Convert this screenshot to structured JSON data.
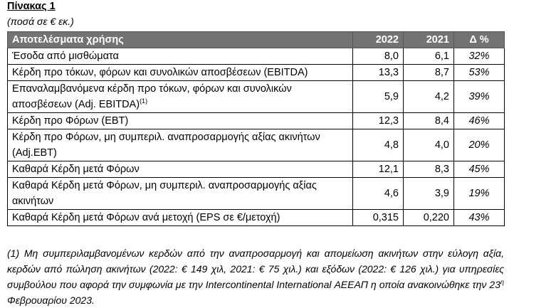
{
  "title": "Πίνακας 1",
  "unit_note": "(ποσά σε € εκ.)",
  "table": {
    "headers": [
      "Αποτελέσματα  χρήσης",
      "2022",
      "2021",
      "Δ %"
    ],
    "rows": [
      {
        "label": "Έσοδα από μισθώματα",
        "sup": "",
        "y2022": "8,0",
        "y2021": "6,1",
        "delta": "32%"
      },
      {
        "label": "Κέρδη προ τόκων, φόρων και συνολικών αποσβέσεων (EBITDA)",
        "sup": "",
        "y2022": "13,3",
        "y2021": "8,7",
        "delta": "53%"
      },
      {
        "label": "Επαναλαμβανόμενα κέρδη προ τόκων, φόρων και συνολικών αποσβέσεων (Adj. EBITDA)",
        "sup": "(1)",
        "y2022": "5,9",
        "y2021": "4,2",
        "delta": "39%"
      },
      {
        "label": "Κέρδη προ Φόρων (EBT)",
        "sup": "",
        "y2022": "12,3",
        "y2021": "8,4",
        "delta": "46%"
      },
      {
        "label": "Κέρδη προ Φόρων, μη συμπεριλ. αναπροσαρμογής αξίας ακινήτων (Adj.EBT)",
        "sup": "",
        "y2022": "4,8",
        "y2021": "4,0",
        "delta": "20%"
      },
      {
        "label": "Καθαρά Κέρδη μετά Φόρων",
        "sup": "",
        "y2022": "12,1",
        "y2021": "8,3",
        "delta": "45%"
      },
      {
        "label": "Καθαρά Κέρδη μετά Φόρων, μη συμπεριλ. αναπροσαρμογής αξίας ακινήτων",
        "sup": "",
        "y2022": "4,6",
        "y2021": "3,9",
        "delta": "19%"
      },
      {
        "label": "Καθαρά Κέρδη μετά Φόρων ανά μετοχή (EPS σε €/μετοχή)",
        "sup": "",
        "y2022": "0,315",
        "y2021": "0,220",
        "delta": "43%"
      }
    ]
  },
  "footnote": {
    "text": "(1) Μη συμπεριλαμβανομένων κερδών από την αναπροσαρμογή  και απομείωση ακινήτων στην εύλογη αξία, κερδών από πώληση ακινήτων (2022: € 149 χιλ, 2021: € 75 χιλ.) και εξόδων (2022: € 126 χιλ.) για υπηρεσίες συμβούλου που αφορά την συμφωνία με την Intercontinental International ΑΕΕΑΠ η οποία ανακοινώθηκε την 23",
    "sup": "η",
    "tail": " Φεβρουαρίου 2023."
  }
}
